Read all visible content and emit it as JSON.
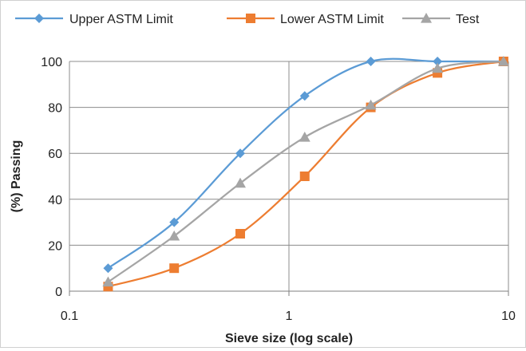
{
  "chart_data": {
    "type": "line",
    "xscale": "log",
    "xlim": [
      0.1,
      10
    ],
    "ylim": [
      0,
      100
    ],
    "xticks": [
      0.1,
      1,
      10
    ],
    "xtick_labels": [
      "0.1",
      "1",
      "10"
    ],
    "yticks": [
      0,
      20,
      40,
      60,
      80,
      100
    ],
    "ytick_labels": [
      "0",
      "20",
      "40",
      "60",
      "80",
      "100"
    ],
    "xlabel": "Sieve size (log scale)",
    "ylabel": "(%) Passing",
    "grid": "on",
    "legend_position": "top",
    "series": [
      {
        "name": "Upper ASTM Limit",
        "color": "#5b9bd5",
        "marker": "diamond",
        "x": [
          0.15,
          0.3,
          0.6,
          1.18,
          2.36,
          4.75,
          9.5
        ],
        "y": [
          10,
          30,
          60,
          85,
          100,
          100,
          100
        ]
      },
      {
        "name": "Lower ASTM Limit",
        "color": "#ed7d31",
        "marker": "square",
        "x": [
          0.15,
          0.3,
          0.6,
          1.18,
          2.36,
          4.75,
          9.5
        ],
        "y": [
          2,
          10,
          25,
          50,
          80,
          95,
          100
        ]
      },
      {
        "name": "Test",
        "color": "#a5a5a5",
        "marker": "triangle",
        "x": [
          0.15,
          0.3,
          0.6,
          1.18,
          2.36,
          4.75,
          9.5
        ],
        "y": [
          4,
          24,
          47,
          67,
          81,
          97,
          100
        ]
      }
    ]
  }
}
